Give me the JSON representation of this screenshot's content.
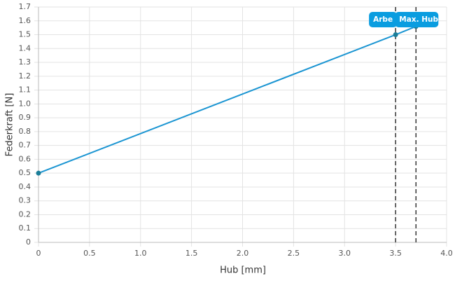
{
  "chart_data": {
    "type": "line",
    "x_label": "Hub [mm]",
    "y_label": "Federkraft [N]",
    "x": [
      0,
      3.5,
      3.7
    ],
    "values": [
      0.5,
      1.5,
      1.56
    ],
    "color": "#1b95d2",
    "xlim": [
      0,
      4
    ],
    "xticks": [
      0,
      0.5,
      {
        "value": 1,
        "label": "1.0"
      },
      1.5,
      {
        "value": 2,
        "label": "2.0"
      },
      2.5,
      {
        "value": 3,
        "label": "3.0"
      },
      3.5,
      {
        "value": 4,
        "label": "4.0"
      }
    ],
    "ylim": [
      0,
      1.7
    ],
    "yticks": [
      0,
      0.1,
      0.2,
      0.3,
      0.4,
      0.5,
      0.6,
      0.7,
      0.8,
      0.9,
      {
        "value": 1,
        "label": "1.0"
      },
      1.1,
      1.2,
      1.3,
      1.4,
      1.5,
      1.6,
      1.7
    ],
    "grid": true,
    "markers": [
      {
        "x": 3.5,
        "label": "Arbe"
      },
      {
        "x": 3.7,
        "label": "Max. Hub"
      }
    ],
    "marker_color": "#0a9de0"
  }
}
